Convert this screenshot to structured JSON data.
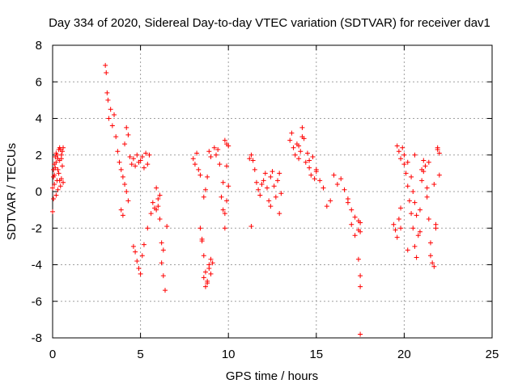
{
  "chart_data": {
    "type": "scatter",
    "title": "Day 334 of 2020, Sidereal Day-to-day VTEC variation (SDTVAR) for receiver dav1",
    "xlabel": "GPS time / hours",
    "ylabel": "SDTVAR / TECUs",
    "xlim": [
      0,
      25
    ],
    "ylim": [
      -8,
      8
    ],
    "xticks": [
      0,
      5,
      10,
      15,
      20,
      25
    ],
    "yticks": [
      -8,
      -6,
      -4,
      -2,
      0,
      2,
      4,
      6,
      8
    ],
    "grid": true,
    "marker": "+",
    "marker_color": "#ff0000",
    "series": [
      {
        "name": "SDTVAR",
        "x": [
          0.0,
          0.05,
          0.1,
          0.15,
          0.2,
          0.25,
          0.3,
          0.35,
          0.4,
          0.45,
          0.5,
          0.55,
          0.6,
          0.0,
          0.05,
          0.1,
          0.15,
          0.2,
          0.25,
          0.3,
          0.35,
          0.4,
          0.45,
          0.5,
          0.55,
          0.6,
          0.05,
          0.1,
          0.2,
          0.3,
          0.4,
          0.5,
          3.0,
          3.05,
          3.1,
          3.15,
          3.2,
          3.3,
          3.4,
          3.5,
          3.6,
          3.7,
          3.8,
          3.9,
          4.0,
          4.1,
          4.2,
          4.3,
          4.4,
          4.5,
          4.6,
          4.7,
          4.8,
          4.9,
          5.0,
          5.1,
          5.2,
          5.3,
          5.4,
          5.5,
          3.9,
          4.0,
          4.1,
          4.2,
          4.3,
          4.6,
          4.7,
          4.8,
          4.9,
          5.0,
          5.1,
          5.2,
          5.4,
          5.6,
          5.7,
          5.8,
          5.9,
          6.0,
          6.1,
          6.2,
          6.3,
          6.4,
          6.5,
          5.9,
          6.0,
          6.1,
          6.2,
          6.3,
          8.0,
          8.1,
          8.2,
          8.3,
          8.4,
          8.5,
          8.6,
          8.7,
          8.8,
          8.9,
          9.0,
          9.1,
          8.4,
          8.5,
          8.6,
          8.7,
          8.8,
          8.9,
          9.0,
          8.6,
          8.7,
          8.8,
          8.9,
          9.0,
          9.2,
          9.3,
          9.4,
          9.5,
          9.6,
          9.7,
          9.8,
          9.9,
          10.0,
          9.7,
          9.8,
          9.9,
          10.0,
          9.8,
          9.9,
          11.2,
          11.3,
          11.4,
          11.5,
          11.6,
          11.7,
          11.8,
          11.9,
          12.0,
          12.1,
          12.2,
          12.3,
          12.4,
          12.5,
          12.6,
          12.7,
          12.8,
          12.9,
          13.0,
          11.3,
          12.4,
          12.9,
          13.5,
          13.6,
          13.7,
          13.8,
          13.9,
          14.0,
          14.1,
          14.2,
          14.3,
          14.4,
          14.5,
          14.6,
          14.7,
          14.8,
          14.9,
          15.0,
          14.0,
          14.2,
          14.6,
          15.0,
          15.2,
          15.4,
          15.6,
          15.8,
          16.0,
          16.2,
          16.4,
          16.6,
          16.8,
          17.0,
          17.2,
          17.4,
          17.5,
          16.8,
          17.0,
          17.2,
          17.4,
          17.5,
          17.4,
          17.5,
          17.5,
          17.5,
          19.4,
          19.5,
          19.6,
          19.8,
          19.6,
          19.7,
          19.8,
          19.9,
          20.0,
          20.1,
          20.2,
          20.3,
          20.4,
          20.5,
          20.6,
          20.7,
          20.8,
          20.9,
          21.0,
          21.1,
          21.2,
          21.3,
          21.4,
          21.5,
          21.6,
          21.7,
          21.8,
          21.9,
          22.0,
          19.7,
          19.8,
          20.0,
          20.2,
          20.4,
          20.5,
          20.6,
          20.7,
          20.9,
          21.1,
          21.3,
          21.5,
          21.7,
          21.9,
          20.2,
          20.6,
          21.0,
          21.4,
          21.8,
          22.0
        ],
        "y": [
          -1.1,
          0.8,
          1.5,
          1.9,
          2.1,
          0.6,
          1.2,
          2.3,
          2.4,
          0.3,
          1.8,
          2.2,
          0.5,
          0.2,
          -0.4,
          0.9,
          1.3,
          1.6,
          2.0,
          0.1,
          1.0,
          1.7,
          2.3,
          0.7,
          1.4,
          2.4,
          1.2,
          0.4,
          -0.2,
          1.8,
          0.6,
          2.0,
          6.9,
          6.5,
          5.4,
          5.0,
          4.0,
          4.5,
          3.6,
          4.2,
          3.0,
          2.2,
          1.6,
          1.2,
          0.8,
          2.6,
          3.5,
          3.1,
          1.9,
          1.5,
          1.8,
          1.4,
          2.0,
          1.6,
          1.7,
          1.9,
          1.3,
          2.1,
          1.5,
          2.0,
          -1.0,
          -1.3,
          0.4,
          0.0,
          -0.5,
          -3.0,
          -3.3,
          -3.8,
          -4.2,
          -4.5,
          -3.5,
          -2.9,
          -2.0,
          -1.2,
          -0.6,
          -0.9,
          -1.0,
          -0.8,
          -1.5,
          -2.8,
          -4.6,
          -5.4,
          -1.9,
          0.2,
          -0.4,
          -0.2,
          -3.9,
          -3.2,
          1.8,
          1.5,
          2.1,
          1.2,
          0.9,
          -2.7,
          -3.5,
          -4.4,
          -5.0,
          -4.2,
          -4.5,
          -3.9,
          -2.0,
          -2.6,
          -4.7,
          -5.2,
          -4.9,
          -4.0,
          -3.7,
          -0.3,
          0.1,
          0.8,
          2.2,
          1.9,
          2.4,
          2.0,
          2.3,
          1.5,
          -0.3,
          0.5,
          2.8,
          2.6,
          2.5,
          -1.0,
          -1.2,
          -0.5,
          0.3,
          -2.0,
          1.4,
          1.8,
          2.0,
          1.7,
          1.2,
          0.5,
          0.1,
          -0.2,
          0.4,
          0.6,
          1.0,
          0.2,
          -0.5,
          0.8,
          1.1,
          0.3,
          -0.3,
          0.6,
          1.0,
          -0.1,
          -1.9,
          -0.8,
          -1.2,
          2.8,
          3.2,
          2.4,
          2.0,
          2.6,
          1.8,
          2.2,
          3.5,
          2.9,
          1.6,
          2.1,
          1.3,
          0.9,
          1.9,
          0.7,
          1.1,
          2.5,
          3.0,
          1.7,
          1.2,
          0.6,
          0.2,
          -0.8,
          -0.5,
          0.9,
          0.4,
          0.7,
          0.1,
          -0.6,
          -1.0,
          -1.4,
          -1.6,
          -2.2,
          -0.4,
          -1.8,
          -2.4,
          -2.1,
          -1.7,
          -3.7,
          -4.6,
          -5.2,
          -7.8,
          -1.8,
          -2.1,
          -2.5,
          -2.0,
          2.5,
          2.2,
          1.8,
          2.4,
          1.5,
          1.0,
          0.3,
          -0.5,
          -1.2,
          -2.0,
          -3.0,
          -3.6,
          -2.4,
          -1.0,
          0.6,
          1.1,
          1.4,
          0.2,
          -1.5,
          -2.8,
          -3.9,
          -4.1,
          -2.0,
          2.3,
          2.1,
          -1.5,
          -0.9,
          2.0,
          1.6,
          0.8,
          0.0,
          -0.6,
          -1.3,
          -2.2,
          1.7,
          -0.3,
          -3.5,
          0.4,
          2.4,
          -3.2,
          2.0,
          1.2,
          1.6,
          -1.8,
          0.9
        ]
      }
    ]
  }
}
